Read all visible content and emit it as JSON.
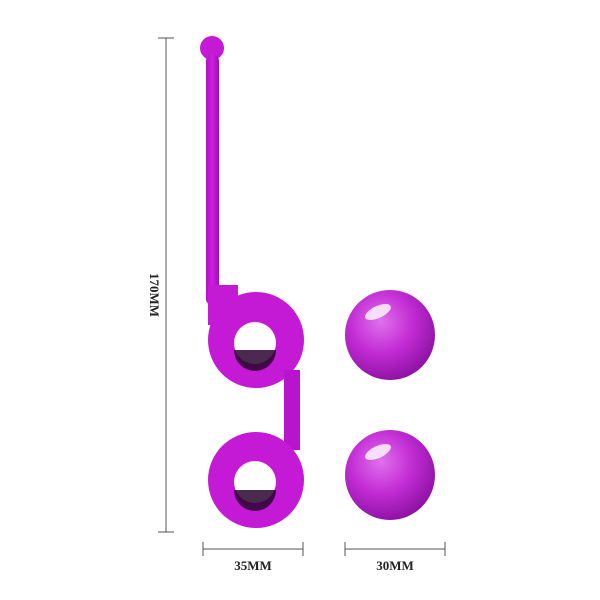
{
  "dimensions": {
    "height_label": "170MM",
    "width_label": "35MM",
    "ball_label": "30MM"
  },
  "colors": {
    "product": "#c417d4",
    "product_dark": "#8e0c9c",
    "ball": "#c02cd2",
    "line": "#555555"
  }
}
